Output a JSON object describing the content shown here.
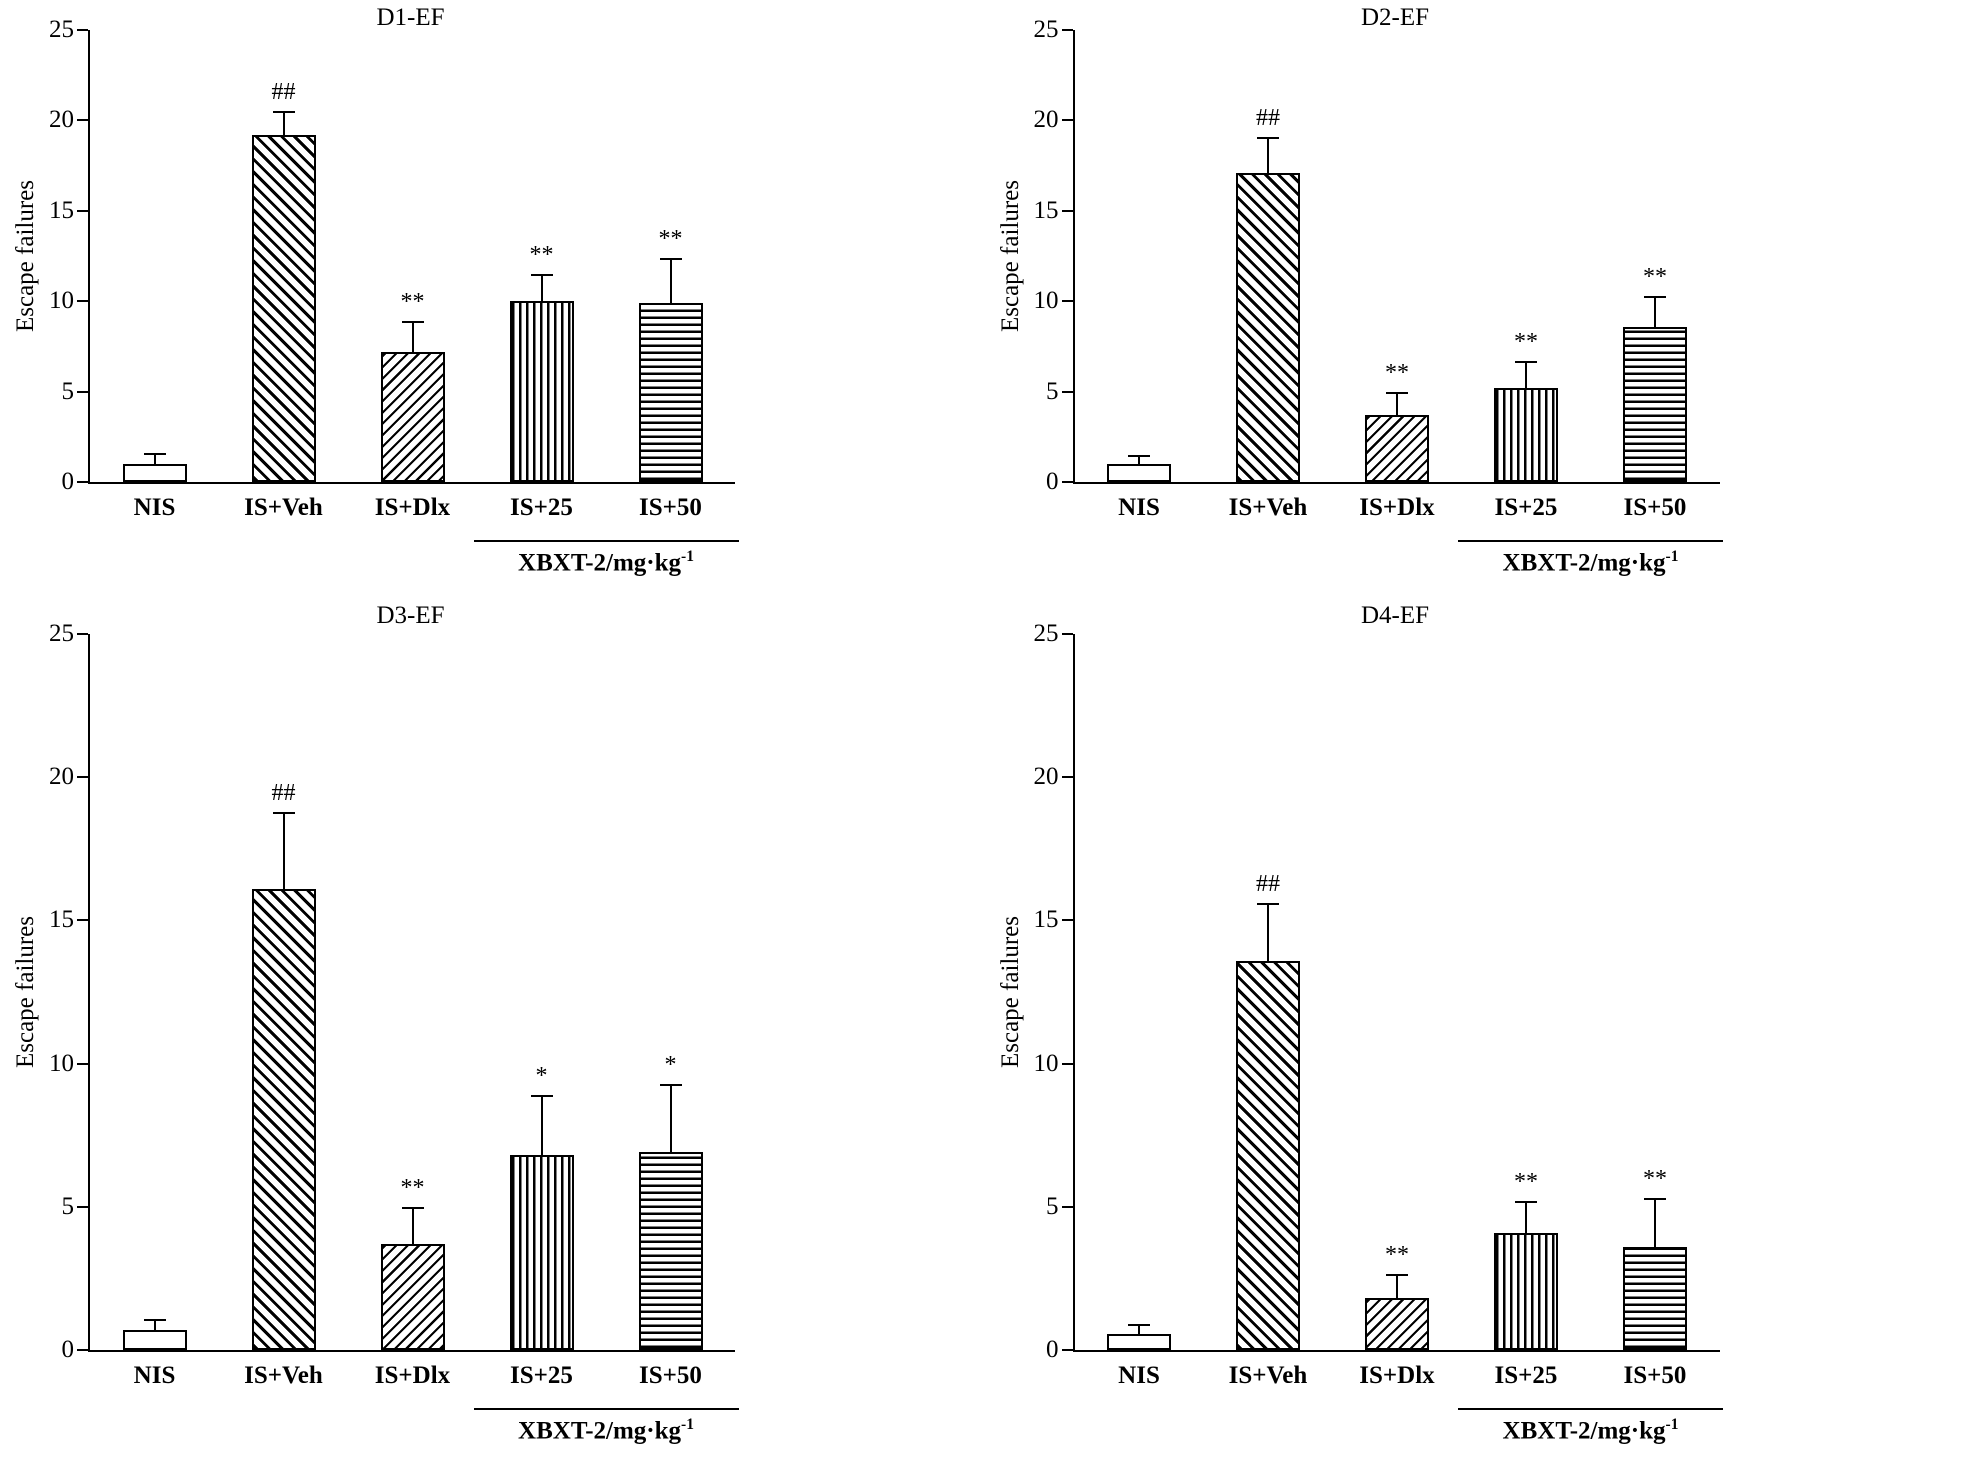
{
  "figure": {
    "ylabel": "Escape failures",
    "y_ticks": [
      0,
      5,
      10,
      15,
      20,
      25
    ],
    "categories": [
      "NIS",
      "IS+Veh",
      "IS+Dlx",
      "IS+25",
      "IS+50"
    ],
    "patterns": [
      "open",
      "diag-down",
      "diag-up",
      "vertical",
      "horizontal"
    ],
    "dose_bracket": {
      "label": "XBXT-2/mg·kg",
      "superscript": "-1"
    },
    "colors": {
      "ink": "#000000",
      "background": "#ffffff"
    }
  },
  "chart_data": [
    {
      "type": "bar",
      "title": "D1-EF",
      "ylabel": "Escape failures",
      "ylim": [
        0,
        25
      ],
      "categories": [
        "NIS",
        "IS+Veh",
        "IS+Dlx",
        "IS+25",
        "IS+50"
      ],
      "values": [
        1.0,
        19.2,
        7.2,
        10.0,
        9.9
      ],
      "errors": [
        0.6,
        1.3,
        1.7,
        1.5,
        2.5
      ],
      "annotations": [
        "",
        "##",
        "**",
        "**",
        "**"
      ]
    },
    {
      "type": "bar",
      "title": "D2-EF",
      "ylabel": "Escape failures",
      "ylim": [
        0,
        25
      ],
      "categories": [
        "NIS",
        "IS+Veh",
        "IS+Dlx",
        "IS+25",
        "IS+50"
      ],
      "values": [
        1.0,
        17.1,
        3.7,
        5.2,
        8.6
      ],
      "errors": [
        0.5,
        2.0,
        1.3,
        1.5,
        1.7
      ],
      "annotations": [
        "",
        "##",
        "**",
        "**",
        "**"
      ]
    },
    {
      "type": "bar",
      "title": "D3-EF",
      "ylabel": "Escape failures",
      "ylim": [
        0,
        25
      ],
      "categories": [
        "NIS",
        "IS+Veh",
        "IS+Dlx",
        "IS+25",
        "IS+50"
      ],
      "values": [
        0.7,
        16.1,
        3.7,
        6.8,
        6.9
      ],
      "errors": [
        0.4,
        2.7,
        1.3,
        2.1,
        2.4
      ],
      "annotations": [
        "",
        "##",
        "**",
        "*",
        "*"
      ]
    },
    {
      "type": "bar",
      "title": "D4-EF",
      "ylabel": "Escape failures",
      "ylim": [
        0,
        25
      ],
      "categories": [
        "NIS",
        "IS+Veh",
        "IS+Dlx",
        "IS+25",
        "IS+50"
      ],
      "values": [
        0.55,
        13.6,
        1.8,
        4.1,
        3.6
      ],
      "errors": [
        0.35,
        2.0,
        0.85,
        1.1,
        1.7
      ],
      "annotations": [
        "",
        "##",
        "**",
        "**",
        "**"
      ]
    }
  ]
}
